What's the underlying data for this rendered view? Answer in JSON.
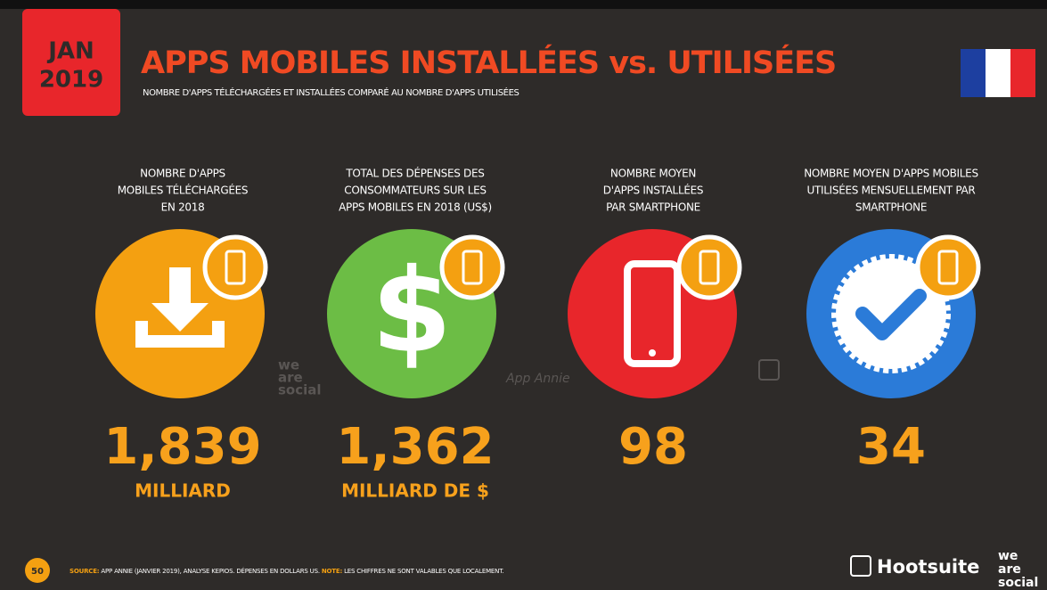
{
  "header": {
    "date": [
      "JAN",
      "2019"
    ],
    "title": "APPS MOBILES INSTALLÉES vs. UTILISÉES",
    "subtitle": "NOMBRE D'APPS TÉLÉCHARGÉES ET INSTALLÉES COMPARÉ AU NOMBRE D'APPS UTILISÉES"
  },
  "cards": [
    {
      "label": [
        "NOMBRE D'APPS",
        "MOBILES TÉLÉCHARGÉES",
        "EN 2018"
      ],
      "value": "1,839",
      "unit": "MILLIARD"
    },
    {
      "label": [
        "TOTAL DES DÉPENSES DES",
        "CONSOMMATEURS SUR LES",
        "APPS MOBILES EN 2018 (US$)"
      ],
      "value": "1,362",
      "unit": "MILLIARD DE $"
    },
    {
      "label": [
        "NOMBRE MOYEN",
        "D'APPS INSTALLÉES",
        "PAR SMARTPHONE"
      ],
      "value": "98",
      "unit": null
    },
    {
      "label": [
        "NOMBRE MOYEN D'APPS MOBILES",
        "UTILISÉES MENSUELLEMENT PAR",
        "SMARTPHONE"
      ],
      "value": "34",
      "unit": null
    }
  ],
  "watermarks": {
    "wearesocial": [
      "we",
      "are",
      "social"
    ],
    "appannie": "App Annie"
  },
  "footer": {
    "page": "50",
    "source_label": "SOURCE:",
    "source": "APP ANNIE (JANVIER 2019), ANALYSE KEPIOS. DÉPENSES EN DOLLARS US.",
    "note_label": "NOTE:",
    "note": "LES CHIFFRES NE SONT VALABLES QUE LOCALEMENT.",
    "brand": "Hootsuite",
    "brand2": [
      "we",
      "are",
      "social"
    ]
  }
}
